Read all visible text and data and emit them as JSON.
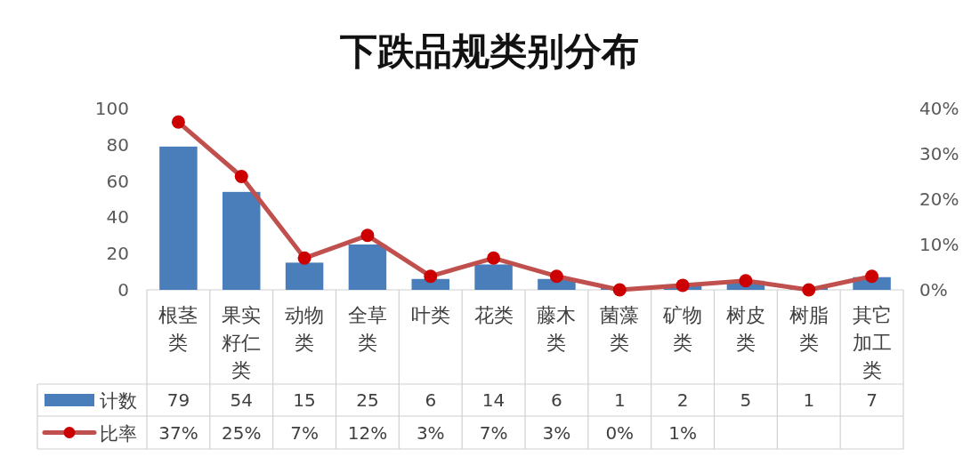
{
  "chart_data": {
    "type": "bar",
    "title": "下跌品规类别分布",
    "categories": [
      "根茎类",
      "果实籽仁类",
      "动物类",
      "全草类",
      "叶类",
      "花类",
      "藤木类",
      "菌藻类",
      "矿物类",
      "树皮类",
      "树脂类",
      "其它加工类"
    ],
    "series": [
      {
        "name": "计数",
        "color": "#4a7ebb",
        "values": [
          79,
          54,
          15,
          25,
          6,
          14,
          6,
          1,
          2,
          5,
          1,
          7
        ],
        "value_labels": [
          "79",
          "54",
          "15",
          "25",
          "6",
          "14",
          "6",
          "1",
          "2",
          "5",
          "1",
          "7"
        ]
      },
      {
        "name": "比率",
        "type": "line",
        "axis": "y2",
        "color": "#c0504d",
        "values": [
          37,
          25,
          7,
          12,
          3,
          7,
          3,
          0,
          1,
          2,
          0,
          3
        ],
        "value_labels": [
          "37%",
          "25%",
          "7%",
          "12%",
          "3%",
          "7%",
          "3%",
          "0%",
          "1%",
          null,
          null,
          null
        ]
      }
    ],
    "ylim": [
      0,
      100
    ],
    "yticks": [
      0,
      20,
      40,
      60,
      80,
      100
    ],
    "y2lim": [
      0,
      40
    ],
    "y2ticks": [
      {
        "value": 0,
        "label": "0%"
      },
      {
        "value": 10,
        "label": "10%"
      },
      {
        "value": 20,
        "label": "20%"
      },
      {
        "value": 30,
        "label": "30%"
      },
      {
        "value": 40,
        "label": "40%"
      }
    ],
    "marker": "circle",
    "line_style": "solid",
    "legend": "bottom left",
    "grid": false
  }
}
